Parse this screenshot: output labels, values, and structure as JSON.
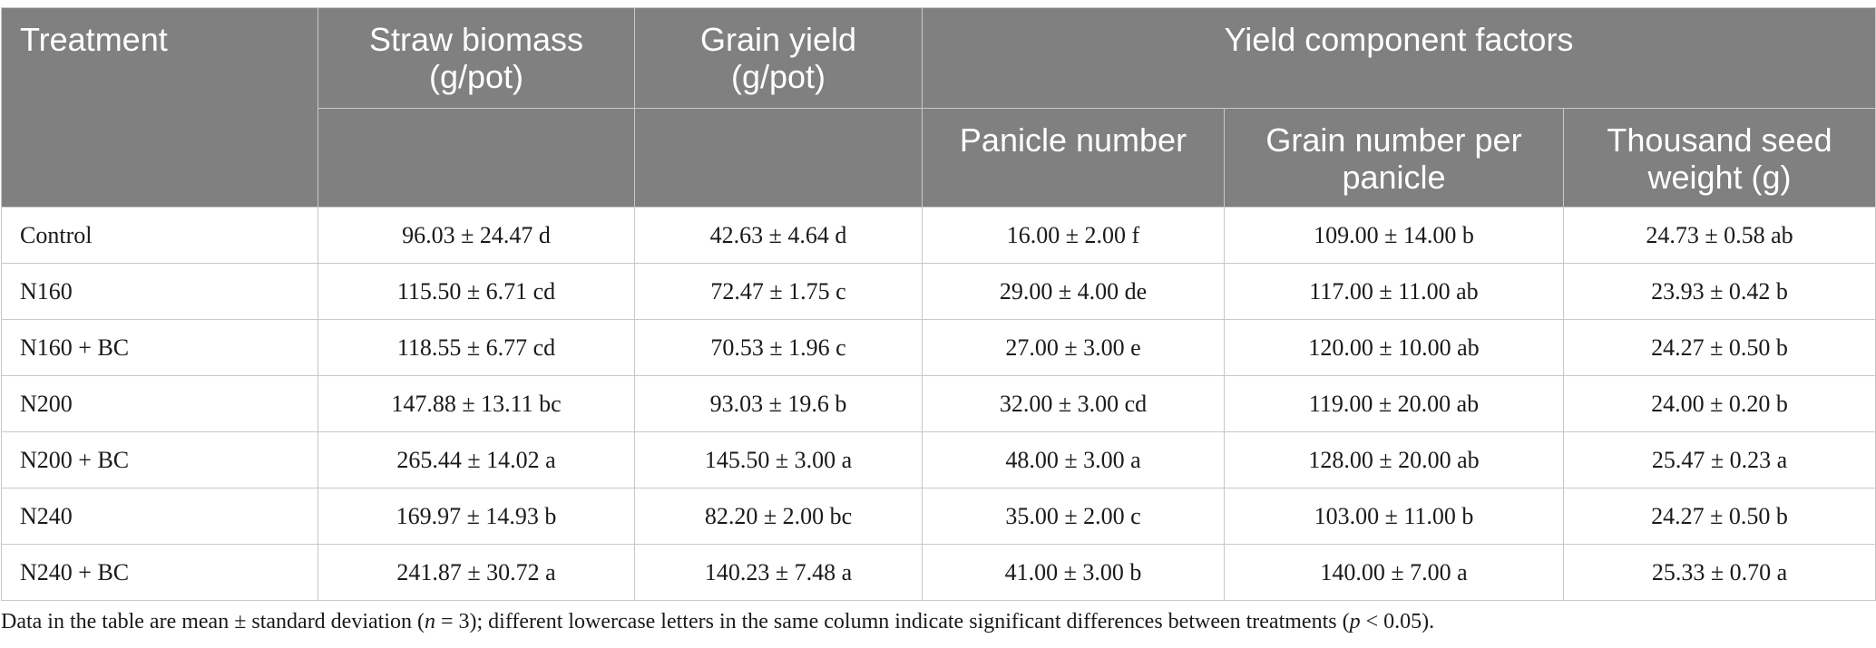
{
  "table": {
    "headers": {
      "treatment": "Treatment",
      "straw_biomass": "Straw biomass (g/pot)",
      "grain_yield": "Grain yield (g/pot)",
      "yield_components": "Yield component factors",
      "panicle_number": "Panicle number",
      "grain_number": "Grain number per panicle",
      "thousand_seed": "Thousand seed weight (g)"
    },
    "rows": [
      {
        "treatment": "Control",
        "straw": "96.03 ± 24.47 d",
        "grain": "42.63 ± 4.64 d",
        "panicle": "16.00 ± 2.00 f",
        "grain_number": "109.00 ± 14.00 b",
        "tsw": "24.73 ± 0.58 ab"
      },
      {
        "treatment": "N160",
        "straw": "115.50 ± 6.71 cd",
        "grain": "72.47 ± 1.75 c",
        "panicle": "29.00 ± 4.00 de",
        "grain_number": "117.00 ± 11.00 ab",
        "tsw": "23.93 ± 0.42 b"
      },
      {
        "treatment": "N160 + BC",
        "straw": "118.55 ± 6.77 cd",
        "grain": "70.53 ± 1.96 c",
        "panicle": "27.00 ± 3.00 e",
        "grain_number": "120.00 ± 10.00 ab",
        "tsw": "24.27 ± 0.50 b"
      },
      {
        "treatment": "N200",
        "straw": "147.88 ± 13.11 bc",
        "grain": "93.03 ± 19.6 b",
        "panicle": "32.00 ± 3.00 cd",
        "grain_number": "119.00 ± 20.00 ab",
        "tsw": "24.00 ± 0.20 b"
      },
      {
        "treatment": "N200 + BC",
        "straw": "265.44 ± 14.02 a",
        "grain": "145.50 ± 3.00 a",
        "panicle": "48.00 ± 3.00 a",
        "grain_number": "128.00 ± 20.00 ab",
        "tsw": "25.47 ± 0.23 a"
      },
      {
        "treatment": "N240",
        "straw": "169.97 ± 14.93 b",
        "grain": "82.20 ± 2.00 bc",
        "panicle": "35.00 ± 2.00 c",
        "grain_number": "103.00 ± 11.00 b",
        "tsw": "24.27 ± 0.50 b"
      },
      {
        "treatment": "N240 + BC",
        "straw": "241.87 ± 30.72 a",
        "grain": "140.23 ± 7.48 a",
        "panicle": "41.00 ± 3.00 b",
        "grain_number": "140.00 ± 7.00 a",
        "tsw": "25.33 ± 0.70 a"
      }
    ]
  },
  "footnote": {
    "part1": "Data in the table are mean ± standard deviation (",
    "n": "n",
    "part2": " = 3); different lowercase letters in the same column indicate significant differences between treatments (",
    "p": "p",
    "part3": " < 0.05)."
  }
}
